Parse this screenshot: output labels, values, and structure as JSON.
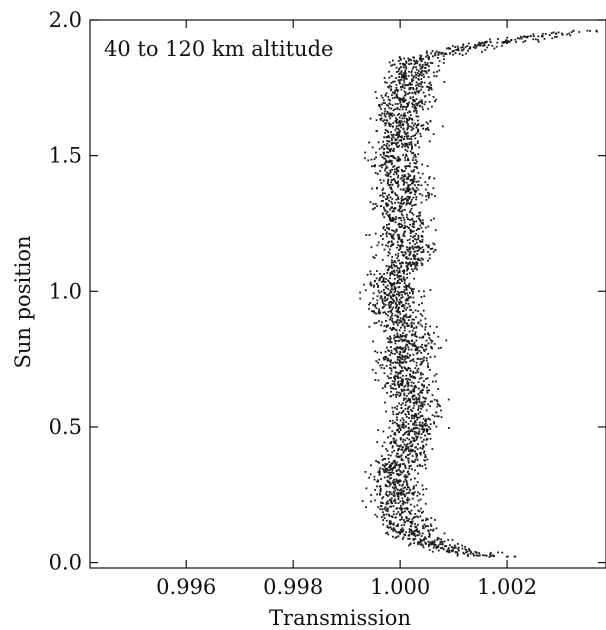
{
  "chart_data": {
    "type": "scatter",
    "title": "",
    "annotation": "40 to 120 km altitude",
    "xlabel": "Transmission",
    "ylabel": "Sun position",
    "xlim": [
      0.9942,
      1.00385
    ],
    "ylim": [
      -0.02,
      2.0
    ],
    "xticks": [
      0.996,
      0.998,
      1.0,
      1.002
    ],
    "xtick_labels": [
      "0.996",
      "0.998",
      "1.000",
      "1.002"
    ],
    "yticks": [
      0.0,
      0.5,
      1.0,
      1.5,
      2.0
    ],
    "ytick_labels": [
      "0.0",
      "0.5",
      "1.0",
      "1.5",
      "2.0"
    ],
    "grid": false,
    "marker_color": "#1a1a1a",
    "trend_knots": {
      "y": [
        0.02,
        0.06,
        0.1,
        0.15,
        0.2,
        0.25,
        0.3,
        0.35,
        0.4,
        0.45,
        0.5,
        0.55,
        0.6,
        0.65,
        0.7,
        0.75,
        0.8,
        0.85,
        0.9,
        0.95,
        1.0,
        1.05,
        1.1,
        1.15,
        1.2,
        1.25,
        1.3,
        1.35,
        1.4,
        1.45,
        1.5,
        1.55,
        1.6,
        1.65,
        1.7,
        1.75,
        1.8,
        1.85,
        1.88,
        1.91,
        1.94,
        1.96
      ],
      "x": [
        1.0018,
        1.0007,
        1.0003,
        1.0001,
        0.9999,
        1.0,
        0.9999,
        0.9999,
        1.0002,
        1.0001,
        1.0003,
        1.0002,
        1.0003,
        1.0001,
        1.0001,
        1.0001,
        1.0002,
        1.0001,
        1.0,
        0.9999,
        0.9999,
        0.9998,
        1.0001,
        1.0002,
        1.0,
        1.0001,
        0.9999,
        1.0001,
        1.0001,
        0.9999,
        0.9999,
        1.0,
        1.0001,
        1.0,
        1.0001,
        1.0002,
        1.0002,
        1.0003,
        1.0008,
        1.0016,
        1.0026,
        1.0035
      ]
    },
    "scatter_spread_x": 0.00045,
    "n_points": 3400
  }
}
